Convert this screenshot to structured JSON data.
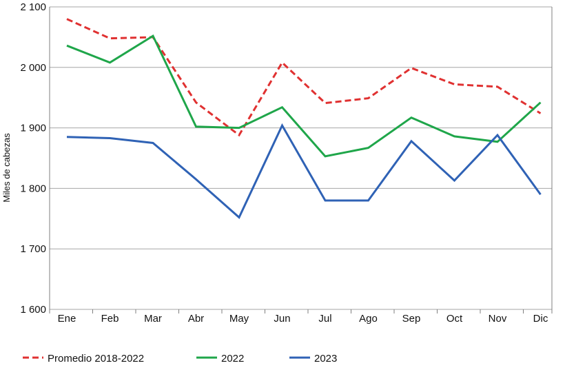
{
  "chart_data": {
    "type": "line",
    "title": "",
    "xlabel": "",
    "ylabel": "Miles de cabezas",
    "ylim": [
      1600,
      2100
    ],
    "yticks": [
      1600,
      1700,
      1800,
      1900,
      2000,
      2100
    ],
    "ytick_labels": [
      "1 600",
      "1 700",
      "1 800",
      "1 900",
      "2 000",
      "2 100"
    ],
    "grid": "horizontal",
    "legend_position": "bottom",
    "categories": [
      "Ene",
      "Feb",
      "Mar",
      "Abr",
      "May",
      "Jun",
      "Jul",
      "Ago",
      "Sep",
      "Oct",
      "Nov",
      "Dic"
    ],
    "series": [
      {
        "name": "Promedio 2018-2022",
        "color": "#e03131",
        "style": "dashed",
        "values": [
          2080,
          2048,
          2050,
          1942,
          1888,
          2008,
          1941,
          1949,
          1999,
          1972,
          1968,
          1924
        ]
      },
      {
        "name": "2022",
        "color": "#1fa64a",
        "style": "solid",
        "values": [
          2036,
          2008,
          2052,
          1902,
          1900,
          1934,
          1853,
          1867,
          1917,
          1886,
          1877,
          1942
        ]
      },
      {
        "name": "2023",
        "color": "#2f62b5",
        "style": "solid",
        "values": [
          1885,
          1883,
          1875,
          1815,
          1752,
          1904,
          1780,
          1780,
          1878,
          1813,
          1888,
          1790
        ]
      }
    ]
  }
}
